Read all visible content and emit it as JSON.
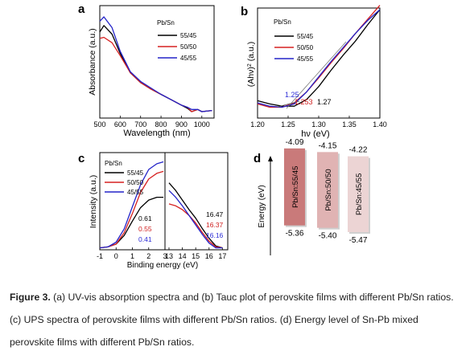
{
  "figure": {
    "panels": {
      "a": {
        "label": "a",
        "legend_title": "Pb/Sn",
        "xlabel": "Wavelength (nm)",
        "ylabel": "Absorbance (a.u.)"
      },
      "b": {
        "label": "b",
        "legend_title": "Pb/Sn",
        "xlabel": "hν (eV)",
        "ylabel_main": "(Ahν)",
        "ylabel_sup": "2",
        "ylabel_tail": " (a.u.)",
        "annotations": [
          {
            "text": "1.25",
            "color": "#2b2bd6"
          },
          {
            "text": "1.253",
            "color": "#d02020"
          },
          {
            "text": "1.27",
            "color": "#000000"
          }
        ]
      },
      "c": {
        "label": "c",
        "legend_title": "Pb/Sn",
        "xlabel": "Binding energy (eV)",
        "ylabel": "Intensity (a.u.)",
        "annotations_left": [
          {
            "text": "0.61",
            "color": "#000000"
          },
          {
            "text": "0.55",
            "color": "#d02020"
          },
          {
            "text": "0.41",
            "color": "#2b2bd6"
          }
        ],
        "annotations_right": [
          {
            "text": "16.47",
            "color": "#000000"
          },
          {
            "text": "16.37",
            "color": "#d02020"
          },
          {
            "text": "16.16",
            "color": "#2b2bd6"
          }
        ]
      },
      "d": {
        "label": "d",
        "ylabel": "Energy (eV)",
        "bars": [
          {
            "name": "Pb/Sn:55/45",
            "top": "-4.09",
            "bottom": "-5.36",
            "color": "#c97a7a"
          },
          {
            "name": "Pb/Sn:50/50",
            "top": "-4.15",
            "bottom": "-5.40",
            "color": "#e0b3b3"
          },
          {
            "name": "Pb/Sn:45/55",
            "top": "-4.22",
            "bottom": "-5.47",
            "color": "#ecd4d4"
          }
        ]
      }
    },
    "legend_entries": [
      {
        "name": "55/45",
        "color": "#000000"
      },
      {
        "name": "50/50",
        "color": "#d62020"
      },
      {
        "name": "45/55",
        "color": "#2323c8"
      }
    ]
  },
  "chart_data": [
    {
      "type": "line",
      "panel": "a",
      "xlabel": "Wavelength (nm)",
      "ylabel": "Absorbance (a.u.)",
      "xlim": [
        500,
        1060
      ],
      "xticks": [
        "500",
        "600",
        "700",
        "800",
        "900",
        "1000"
      ],
      "series": [
        {
          "name": "55/45",
          "x": [
            500,
            520,
            560,
            600,
            650,
            700,
            750,
            800,
            850,
            900,
            930,
            950,
            980,
            1000,
            1050
          ],
          "y": [
            0.8,
            0.86,
            0.78,
            0.6,
            0.42,
            0.33,
            0.27,
            0.22,
            0.17,
            0.12,
            0.09,
            0.06,
            0.08,
            0.06,
            0.07
          ]
        },
        {
          "name": "50/50",
          "x": [
            500,
            520,
            560,
            600,
            650,
            700,
            750,
            800,
            850,
            900,
            930,
            950,
            980,
            1000,
            1050
          ],
          "y": [
            0.74,
            0.75,
            0.7,
            0.58,
            0.42,
            0.33,
            0.27,
            0.22,
            0.17,
            0.12,
            0.1,
            0.06,
            0.08,
            0.06,
            0.07
          ]
        },
        {
          "name": "45/55",
          "x": [
            500,
            520,
            560,
            600,
            650,
            700,
            750,
            800,
            850,
            900,
            930,
            950,
            980,
            1000,
            1050
          ],
          "y": [
            0.9,
            0.94,
            0.84,
            0.62,
            0.43,
            0.34,
            0.28,
            0.22,
            0.17,
            0.12,
            0.1,
            0.08,
            0.08,
            0.06,
            0.07
          ]
        }
      ]
    },
    {
      "type": "line",
      "panel": "b",
      "xlabel": "hν (eV)",
      "ylabel": "(Ahν)2 (a.u.)",
      "xlim": [
        1.2,
        1.4
      ],
      "xticks": [
        "1.20",
        "1.25",
        "1.30",
        "1.35",
        "1.40"
      ],
      "series": [
        {
          "name": "55/45",
          "x": [
            1.2,
            1.22,
            1.24,
            1.26,
            1.28,
            1.3,
            1.32,
            1.34,
            1.36,
            1.38,
            1.4
          ],
          "y": [
            0.16,
            0.13,
            0.11,
            0.11,
            0.17,
            0.29,
            0.44,
            0.58,
            0.71,
            0.86,
            1.0
          ]
        },
        {
          "name": "50/50",
          "x": [
            1.2,
            1.22,
            1.24,
            1.26,
            1.28,
            1.3,
            1.32,
            1.34,
            1.36,
            1.38,
            1.4
          ],
          "y": [
            0.13,
            0.1,
            0.1,
            0.14,
            0.24,
            0.37,
            0.51,
            0.64,
            0.78,
            0.91,
            1.04
          ]
        },
        {
          "name": "45/55",
          "x": [
            1.2,
            1.22,
            1.24,
            1.26,
            1.28,
            1.3,
            1.32,
            1.34,
            1.36,
            1.38,
            1.4
          ],
          "y": [
            0.14,
            0.11,
            0.1,
            0.13,
            0.24,
            0.38,
            0.52,
            0.65,
            0.78,
            0.9,
            1.0
          ]
        }
      ]
    },
    {
      "type": "line",
      "panel": "c",
      "xlabel": "Binding energy (eV)",
      "ylabel": "Intensity (a.u.)",
      "xticks": [
        "-1",
        "0",
        "1",
        "2",
        "3",
        "13",
        "14",
        "15",
        "16",
        "17"
      ],
      "series": [
        {
          "name": "55/45",
          "x": [
            -1,
            -0.5,
            0,
            0.5,
            1,
            1.5,
            2,
            2.5,
            2.9
          ],
          "y": [
            0.02,
            0.03,
            0.06,
            0.15,
            0.3,
            0.44,
            0.52,
            0.55,
            0.55
          ]
        },
        {
          "name": "50/50",
          "x": [
            -1,
            -0.5,
            0,
            0.5,
            1,
            1.5,
            2,
            2.5,
            2.9
          ],
          "y": [
            0.02,
            0.03,
            0.06,
            0.18,
            0.38,
            0.6,
            0.74,
            0.8,
            0.82
          ]
        },
        {
          "name": "45/55",
          "x": [
            -1,
            -0.5,
            0,
            0.5,
            1,
            1.5,
            2,
            2.5,
            2.9
          ],
          "y": [
            0.02,
            0.03,
            0.08,
            0.22,
            0.45,
            0.68,
            0.84,
            0.9,
            0.92
          ]
        },
        {
          "name": "55/45",
          "x": [
            13,
            13.5,
            14,
            14.5,
            15,
            15.5,
            16,
            16.5,
            17
          ],
          "y": [
            0.7,
            0.62,
            0.52,
            0.42,
            0.33,
            0.22,
            0.12,
            0.04,
            0.02
          ]
        },
        {
          "name": "50/50",
          "x": [
            13,
            13.5,
            14,
            14.5,
            15,
            15.5,
            16,
            16.5,
            17
          ],
          "y": [
            0.48,
            0.46,
            0.42,
            0.36,
            0.28,
            0.18,
            0.09,
            0.03,
            0.02
          ]
        },
        {
          "name": "45/55",
          "x": [
            13,
            13.5,
            14,
            14.5,
            15,
            15.5,
            16,
            16.5,
            17
          ],
          "y": [
            0.62,
            0.55,
            0.46,
            0.36,
            0.26,
            0.16,
            0.07,
            0.02,
            0.02
          ]
        }
      ]
    }
  ],
  "caption": {
    "label": "Figure 3.",
    "text": " (a) UV-vis absorption spectra and (b) Tauc plot of perovskite films with different Pb/Sn ratios. (c) UPS spectra of perovskite films with different Pb/Sn ratios. (d) Energy level of Sn-Pb mixed perovskite films with different Pb/Sn ratios."
  }
}
